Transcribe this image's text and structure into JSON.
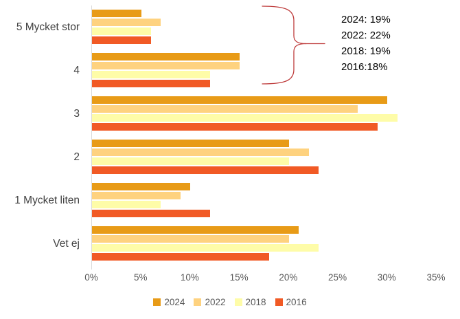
{
  "chart_data": {
    "type": "bar",
    "orientation": "horizontal",
    "title": "",
    "xlabel": "",
    "ylabel": "",
    "xlim": [
      0,
      35
    ],
    "grid": false,
    "legend_position": "bottom",
    "categories": [
      "5 Mycket stor",
      "4",
      "3",
      "2",
      "1 Mycket liten",
      "Vet ej"
    ],
    "x_ticks": [
      "0%",
      "5%",
      "10%",
      "15%",
      "20%",
      "25%",
      "30%",
      "35%"
    ],
    "series": [
      {
        "name": "2024",
        "color": "#E89B17",
        "values": [
          5,
          15,
          30,
          20,
          10,
          21
        ]
      },
      {
        "name": "2022",
        "color": "#FED27F",
        "values": [
          7,
          15,
          27,
          22,
          9,
          20
        ]
      },
      {
        "name": "2018",
        "color": "#FEFCA8",
        "values": [
          6,
          12,
          31,
          20,
          7,
          23
        ]
      },
      {
        "name": "2016",
        "color": "#F15A25",
        "values": [
          6,
          12,
          29,
          23,
          12,
          18
        ]
      }
    ]
  },
  "annotation": {
    "lines": [
      "2024: 19%",
      "2022: 22%",
      "2018: 19%",
      "2016:18%"
    ],
    "brace_color": "#BE3B3B"
  }
}
